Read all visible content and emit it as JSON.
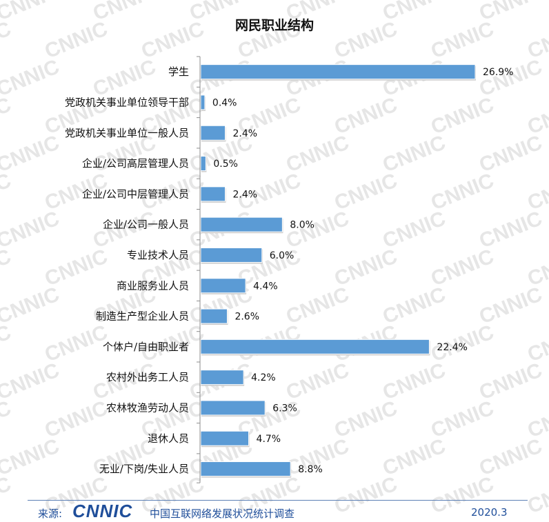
{
  "chart_data": {
    "type": "bar",
    "orientation": "horizontal",
    "title": "网民职业结构",
    "categories": [
      "学生",
      "党政机关事业单位领导干部",
      "党政机关事业单位一般人员",
      "企业/公司高层管理人员",
      "企业/公司中层管理人员",
      "企业/公司一般人员",
      "专业技术人员",
      "商业服务业人员",
      "制造生产型企业人员",
      "个体户/自由职业者",
      "农村外出务工人员",
      "农林牧渔劳动人员",
      "退休人员",
      "无业/下岗/失业人员"
    ],
    "values": [
      26.9,
      0.4,
      2.4,
      0.5,
      2.4,
      8.0,
      6.0,
      4.4,
      2.6,
      22.4,
      4.2,
      6.3,
      4.7,
      8.8
    ],
    "value_labels": [
      "26.9%",
      "0.4%",
      "2.4%",
      "0.5%",
      "2.4%",
      "8.0%",
      "6.0%",
      "4.4%",
      "2.6%",
      "22.4%",
      "4.2%",
      "6.3%",
      "4.7%",
      "8.8%"
    ],
    "xlim": [
      0,
      27
    ],
    "grid": false,
    "legend": "none",
    "bar_color": "#5b9bd5"
  },
  "footer": {
    "source_label": "来源:",
    "logo_text": "CNNIC",
    "organization": "中国互联网络发展状况统计调查",
    "date": "2020.3"
  },
  "colors": {
    "accent": "#1f4e9a",
    "watermark": "#e6e6e6"
  }
}
